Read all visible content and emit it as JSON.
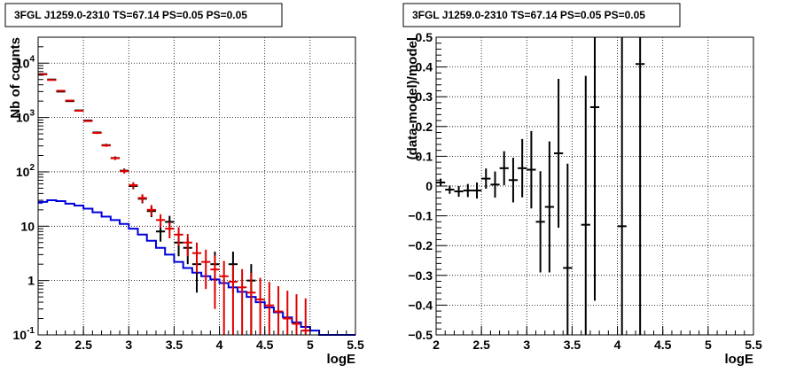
{
  "chart_data": [
    {
      "type": "line",
      "title": "3FGL J1259.0-2310 TS=67.14 PS=0.05 PS=0.05",
      "xlabel": "logE",
      "ylabel": "Nb of counts",
      "xlim": [
        2,
        5.5
      ],
      "ylim": [
        0.1,
        30000
      ],
      "yscale": "log",
      "grid": true,
      "x_ticks": [
        "2",
        "2.5",
        "3",
        "3.5",
        "4",
        "4.5",
        "5",
        "5.5"
      ],
      "y_ticks": [
        "10^-1",
        "1",
        "10",
        "10^2",
        "10^3",
        "10^4"
      ],
      "series": [
        {
          "color": "#000000",
          "kind": "data-points",
          "x": [
            2.05,
            2.15,
            2.25,
            2.35,
            2.45,
            2.55,
            2.65,
            2.75,
            2.85,
            2.95,
            3.05,
            3.15,
            3.25,
            3.35,
            3.45,
            3.55,
            3.65,
            3.75,
            3.95,
            4.15,
            4.35
          ],
          "y": [
            6300,
            5000,
            3000,
            2000,
            1350,
            880,
            530,
            310,
            180,
            105,
            55,
            32,
            19,
            8,
            12,
            5,
            4,
            2,
            2,
            2,
            1
          ],
          "yerr": [
            80,
            70,
            55,
            45,
            37,
            30,
            23,
            18,
            13,
            10,
            7,
            5.6,
            4.3,
            2.8,
            3.5,
            2.2,
            2,
            1.4,
            1.4,
            1.4,
            1
          ]
        },
        {
          "color": "#e00000",
          "kind": "model-total",
          "x": [
            2.05,
            2.15,
            2.25,
            2.35,
            2.45,
            2.55,
            2.65,
            2.75,
            2.85,
            2.95,
            3.05,
            3.15,
            3.25,
            3.35,
            3.45,
            3.55,
            3.65,
            3.75,
            3.85,
            3.95,
            4.05,
            4.15,
            4.25,
            4.35,
            4.45,
            4.55,
            4.65,
            4.75,
            4.85,
            4.95
          ],
          "y": [
            6200,
            4900,
            3100,
            2050,
            1330,
            860,
            520,
            305,
            178,
            103,
            57,
            33,
            20,
            13,
            9,
            7,
            5,
            3.2,
            2.2,
            1.6,
            1.2,
            0.95,
            0.75,
            0.6,
            0.45,
            0.35,
            0.27,
            0.2,
            0.16,
            0.12
          ],
          "yerr": [
            79,
            70,
            56,
            45,
            36,
            29,
            23,
            17,
            13,
            10,
            7.5,
            5.7,
            4.5,
            3.6,
            3,
            2.6,
            2.2,
            1.8,
            1.5,
            1.3,
            1.1,
            0.97,
            0.87,
            0.77,
            0.67,
            0.59,
            0.52,
            0.45,
            0.4,
            0.35
          ]
        },
        {
          "color": "#0000dd",
          "kind": "model-source",
          "x": [
            2.0,
            2.05,
            2.15,
            2.25,
            2.35,
            2.45,
            2.55,
            2.65,
            2.75,
            2.85,
            2.95,
            3.05,
            3.15,
            3.25,
            3.35,
            3.45,
            3.55,
            3.65,
            3.75,
            3.85,
            3.95,
            4.05,
            4.15,
            4.25,
            4.35,
            4.45,
            4.55,
            4.65,
            4.75,
            4.85,
            4.95,
            5.05,
            5.15,
            5.25,
            5.35,
            5.45
          ],
          "y": [
            27,
            28,
            30,
            29,
            26,
            24,
            21,
            18,
            15,
            13,
            11,
            9,
            7,
            5.4,
            4,
            3,
            2.2,
            1.7,
            1.4,
            1.2,
            1.05,
            0.9,
            0.75,
            0.62,
            0.5,
            0.4,
            0.32,
            0.26,
            0.21,
            0.17,
            0.14,
            0.12,
            0.1,
            0.1,
            0.1,
            0.1
          ]
        }
      ]
    },
    {
      "type": "scatter",
      "title": "3FGL J1259.0-2310 TS=67.14 PS=0.05 PS=0.05",
      "xlabel": "logE",
      "ylabel": "(data-model)/model",
      "xlim": [
        2,
        5.5
      ],
      "ylim": [
        -0.5,
        0.5
      ],
      "grid": true,
      "x_ticks": [
        "2",
        "2.5",
        "3",
        "3.5",
        "4",
        "4.5",
        "5",
        "5.5"
      ],
      "y_ticks": [
        "−0.5",
        "−0.4",
        "−0.3",
        "−0.2",
        "−0.1",
        "0",
        "0.1",
        "0.2",
        "0.3",
        "0.4",
        "0.5"
      ],
      "series": [
        {
          "color": "#000000",
          "x": [
            2.05,
            2.15,
            2.25,
            2.35,
            2.45,
            2.55,
            2.65,
            2.75,
            2.85,
            2.95,
            3.05,
            3.15,
            3.25,
            3.35,
            3.45,
            3.65,
            3.75,
            4.05,
            4.25
          ],
          "y": [
            0.012,
            -0.012,
            -0.018,
            -0.015,
            -0.015,
            0.025,
            0.005,
            0.06,
            0.02,
            0.06,
            0.055,
            -0.12,
            -0.07,
            0.11,
            -0.275,
            -0.13,
            0.265,
            -0.135,
            0.41
          ],
          "yerr": [
            0.013,
            0.014,
            0.018,
            0.022,
            0.027,
            0.034,
            0.044,
            0.057,
            0.075,
            0.098,
            0.13,
            0.17,
            0.22,
            0.25,
            0.35,
            0.5,
            0.65,
            0.8,
            1.0
          ]
        }
      ]
    }
  ]
}
